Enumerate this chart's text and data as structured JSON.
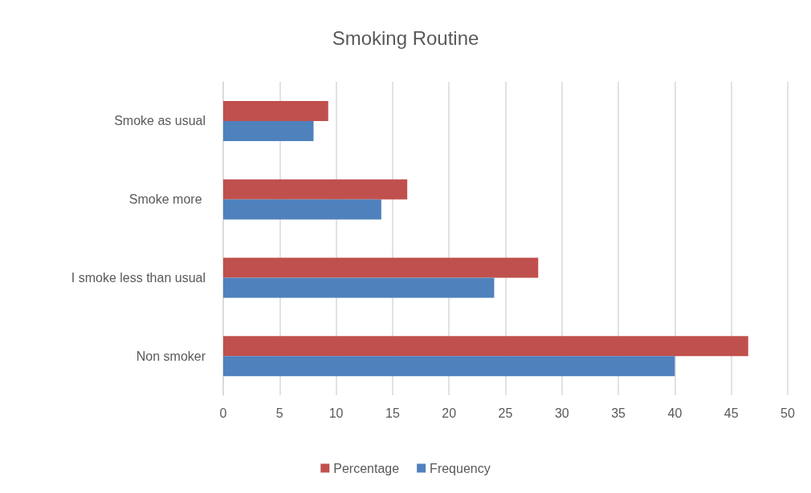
{
  "chart_data": {
    "type": "bar",
    "orientation": "horizontal",
    "title": "Smoking Routine",
    "categories": [
      "Smoke as usual",
      "Smoke more ",
      "I smoke less than usual",
      "Non smoker"
    ],
    "series": [
      {
        "name": "Percentage",
        "color": "#c0504d",
        "values": [
          9.3,
          16.3,
          27.9,
          46.5
        ]
      },
      {
        "name": "Frequency",
        "color": "#4f81bd",
        "values": [
          8,
          14,
          24,
          40
        ]
      }
    ],
    "xlim": [
      0,
      50
    ],
    "xticks": [
      0,
      5,
      10,
      15,
      20,
      25,
      30,
      35,
      40,
      45,
      50
    ],
    "grid": "x",
    "legend": "bottom"
  }
}
